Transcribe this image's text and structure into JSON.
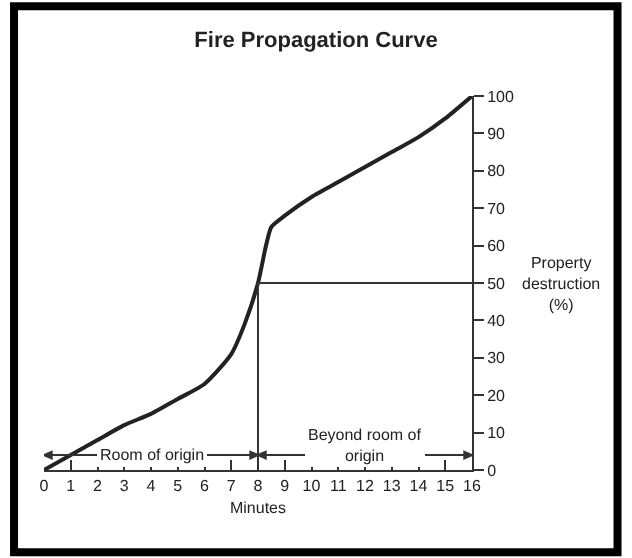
{
  "chart_data": {
    "type": "line",
    "title": "Fire Propagation Curve",
    "xlabel": "Minutes",
    "ylabel": "Property destruction (%)",
    "x": [
      0,
      1,
      2,
      3,
      4,
      5,
      6,
      7,
      7.5,
      8,
      8.3,
      8.5,
      9,
      10,
      11,
      12,
      13,
      14,
      15,
      16
    ],
    "series": [
      {
        "color": "#222222",
        "values": [
          0,
          4,
          8,
          12,
          15,
          19,
          23,
          31,
          39,
          50,
          60,
          65,
          68,
          73,
          77,
          81,
          85,
          89,
          94,
          100
        ]
      }
    ],
    "xlim": [
      0,
      16
    ],
    "xticks": [
      0,
      1,
      2,
      3,
      4,
      5,
      6,
      7,
      8,
      9,
      10,
      11,
      12,
      13,
      14,
      15,
      16
    ],
    "ylim": [
      0,
      100
    ],
    "yticks": [
      0,
      10,
      20,
      30,
      40,
      50,
      60,
      70,
      80,
      90,
      100
    ],
    "ref_lines": [
      {
        "axis": "x",
        "value": 8
      },
      {
        "axis": "y",
        "value": 50
      }
    ],
    "annotations": [
      "Room of origin",
      "Beyond room of origin"
    ],
    "marker": "none",
    "line_style": "solid"
  }
}
